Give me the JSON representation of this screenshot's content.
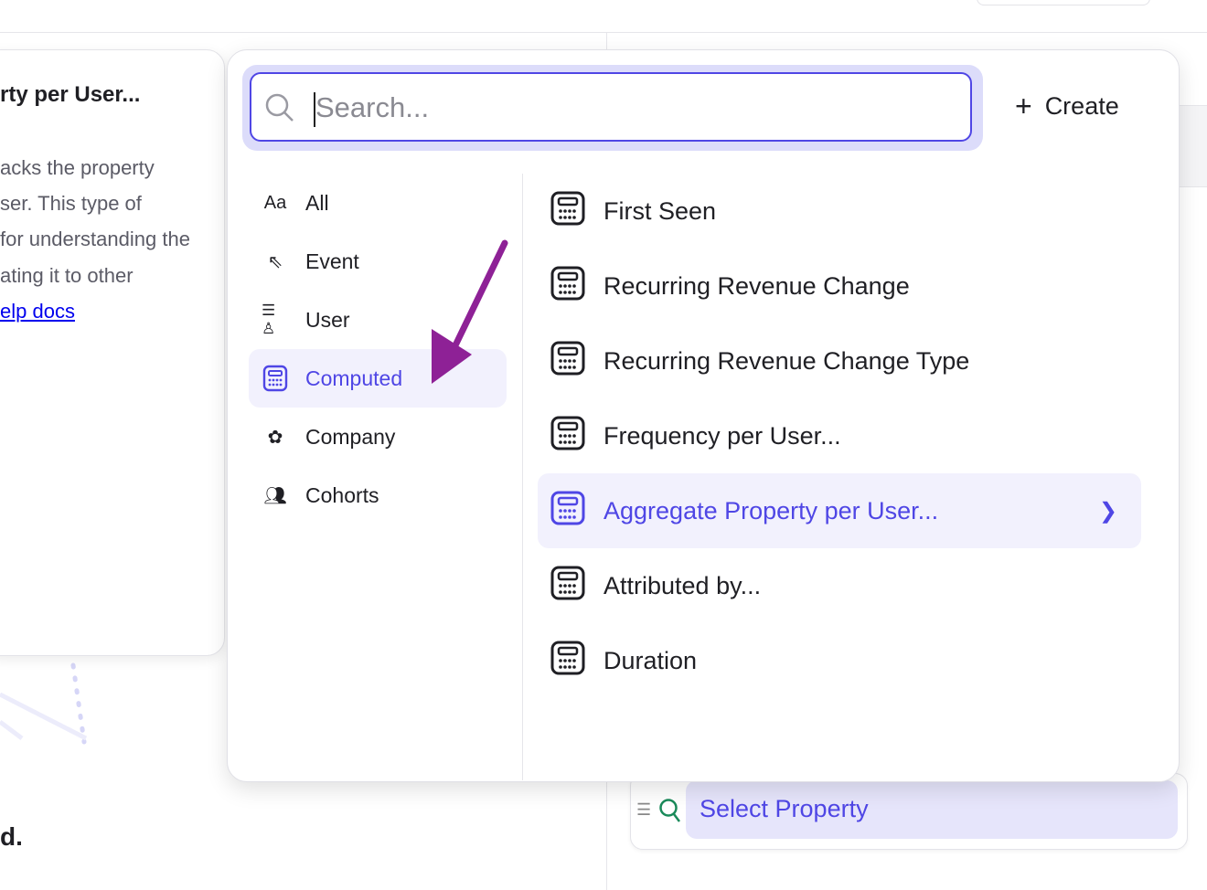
{
  "info_card": {
    "title": "rty per User...",
    "lines": [
      "acks the property",
      "ser. This type of",
      "for understanding the",
      "ating it to other"
    ],
    "link": "elp docs"
  },
  "background": {
    "heading_fragment": "d."
  },
  "search": {
    "placeholder": "Search...",
    "value": ""
  },
  "create_label": "Create",
  "categories": [
    {
      "label": "All",
      "icon": "text-aa-icon"
    },
    {
      "label": "Event",
      "icon": "cursor-click-icon"
    },
    {
      "label": "User",
      "icon": "user-list-icon"
    },
    {
      "label": "Computed",
      "icon": "calculator-icon",
      "selected": true
    },
    {
      "label": "Company",
      "icon": "building-flower-icon"
    },
    {
      "label": "Cohorts",
      "icon": "users-group-icon"
    }
  ],
  "items": [
    {
      "label": "First Seen"
    },
    {
      "label": "Recurring Revenue Change"
    },
    {
      "label": "Recurring Revenue Change Type"
    },
    {
      "label": "Frequency per User..."
    },
    {
      "label": "Aggregate Property per User...",
      "selected": true
    },
    {
      "label": "Attributed by..."
    },
    {
      "label": "Duration"
    }
  ],
  "select_property": {
    "label": "Select Property"
  },
  "colors": {
    "accent": "#4f46e5",
    "highlight": "#f2f1fd",
    "arrow": "#8e2196",
    "search_icon_green": "#1a8a5a"
  }
}
